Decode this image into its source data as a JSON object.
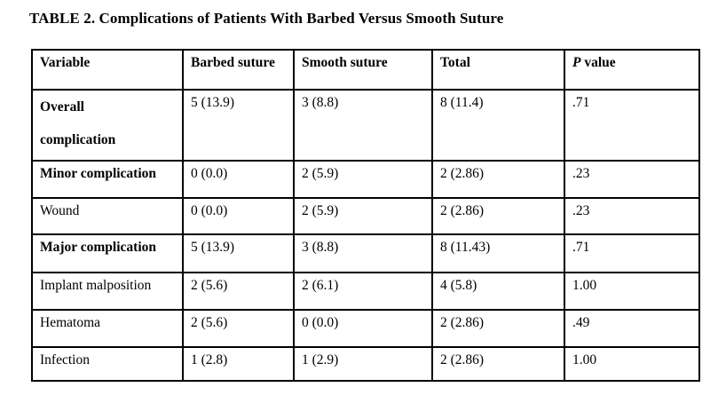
{
  "title": "TABLE 2. Complications of Patients With Barbed Versus Smooth Suture",
  "table": {
    "columns": [
      {
        "label": "Variable"
      },
      {
        "label": "Barbed suture"
      },
      {
        "label": "Smooth suture"
      },
      {
        "label": "Total"
      },
      {
        "italic_prefix": "P",
        "label": " value"
      }
    ],
    "rows": [
      {
        "variable": "Overall complication",
        "bold": true,
        "two_line": true,
        "values": [
          "5 (13.9)",
          "3 (8.8)",
          "8 (11.4)",
          ".71"
        ]
      },
      {
        "variable": "Minor complication",
        "bold": true,
        "two_line": false,
        "values": [
          "0 (0.0)",
          "2 (5.9)",
          "2 (2.86)",
          ".23"
        ]
      },
      {
        "variable": "Wound",
        "bold": false,
        "two_line": false,
        "values": [
          "0 (0.0)",
          "2 (5.9)",
          "2 (2.86)",
          ".23"
        ]
      },
      {
        "variable": "Major complication",
        "bold": true,
        "two_line": false,
        "values": [
          "5 (13.9)",
          "3 (8.8)",
          "8 (11.43)",
          ".71"
        ]
      },
      {
        "variable": "Implant malposition",
        "bold": false,
        "two_line": false,
        "values": [
          "2 (5.6)",
          "2 (6.1)",
          "4 (5.8)",
          "1.00"
        ]
      },
      {
        "variable": "Hematoma",
        "bold": false,
        "two_line": false,
        "values": [
          "2 (5.6)",
          "0 (0.0)",
          "2 (2.86)",
          ".49"
        ]
      },
      {
        "variable": "Infection",
        "bold": false,
        "two_line": false,
        "values": [
          "1 (2.8)",
          "1 (2.9)",
          "2 (2.86)",
          "1.00"
        ]
      }
    ]
  },
  "colors": {
    "background": "#ffffff",
    "text": "#000000",
    "border": "#000000"
  }
}
